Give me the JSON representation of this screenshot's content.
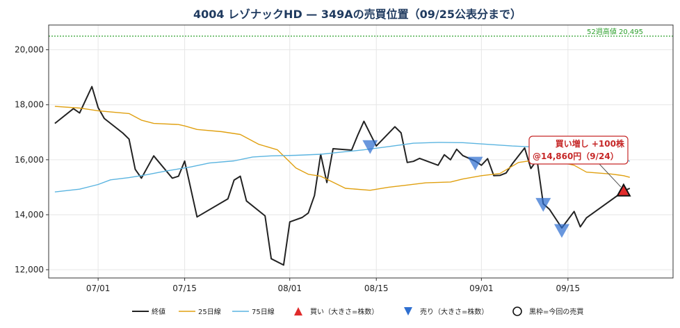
{
  "chart_data": {
    "type": "line",
    "title": "4004 レゾナックHD — 349Aの売買位置（09/25公表分まで）",
    "xlabel": "",
    "ylabel": "",
    "ylim": [
      11700,
      20900
    ],
    "xlim": [
      "2025-06-23",
      "2025-10-02"
    ],
    "grid": true,
    "legend_position": "bottom",
    "x_ticks": [
      "2025-07-01",
      "2025-07-15",
      "2025-08-01",
      "2025-08-15",
      "2025-09-01",
      "2025-09-15"
    ],
    "x_tick_labels": [
      "07/01",
      "07/15",
      "08/01",
      "08/15",
      "09/01",
      "09/15"
    ],
    "y_ticks": [
      12000,
      14000,
      16000,
      18000,
      20000
    ],
    "y_tick_labels": [
      "12,000",
      "14,000",
      "16,000",
      "18,000",
      "20,000"
    ],
    "colors": {
      "close": "#222222",
      "ma25": "#e0a010",
      "ma75": "#5ab4e0",
      "buy": "#e02b2b",
      "sell": "#2f6fd0",
      "ref": "#2ca02c",
      "note_edge": "#c62828"
    },
    "series": [
      {
        "name": "終値",
        "key": "close",
        "points": [
          [
            "2025-06-24",
            17320
          ],
          [
            "2025-06-27",
            17860
          ],
          [
            "2025-06-28",
            17700
          ],
          [
            "2025-06-30",
            18660
          ],
          [
            "2025-07-01",
            17900
          ],
          [
            "2025-07-02",
            17500
          ],
          [
            "2025-07-05",
            16970
          ],
          [
            "2025-07-06",
            16750
          ],
          [
            "2025-07-07",
            15650
          ],
          [
            "2025-07-08",
            15330
          ],
          [
            "2025-07-10",
            16140
          ],
          [
            "2025-07-13",
            15330
          ],
          [
            "2025-07-14",
            15400
          ],
          [
            "2025-07-15",
            15950
          ],
          [
            "2025-07-17",
            13920
          ],
          [
            "2025-07-22",
            14580
          ],
          [
            "2025-07-23",
            15260
          ],
          [
            "2025-07-24",
            15400
          ],
          [
            "2025-07-25",
            14500
          ],
          [
            "2025-07-28",
            13960
          ],
          [
            "2025-07-29",
            12400
          ],
          [
            "2025-07-31",
            12170
          ],
          [
            "2025-08-01",
            13740
          ],
          [
            "2025-08-03",
            13900
          ],
          [
            "2025-08-04",
            14060
          ],
          [
            "2025-08-05",
            14700
          ],
          [
            "2025-08-06",
            16200
          ],
          [
            "2025-08-07",
            15170
          ],
          [
            "2025-08-08",
            16400
          ],
          [
            "2025-08-11",
            16350
          ],
          [
            "2025-08-12",
            16900
          ],
          [
            "2025-08-13",
            17400
          ],
          [
            "2025-08-14",
            16950
          ],
          [
            "2025-08-15",
            16500
          ],
          [
            "2025-08-18",
            17200
          ],
          [
            "2025-08-19",
            16980
          ],
          [
            "2025-08-20",
            15900
          ],
          [
            "2025-08-21",
            15940
          ],
          [
            "2025-08-22",
            16050
          ],
          [
            "2025-08-25",
            15800
          ],
          [
            "2025-08-26",
            16180
          ],
          [
            "2025-08-27",
            16000
          ],
          [
            "2025-08-28",
            16380
          ],
          [
            "2025-08-29",
            16150
          ],
          [
            "2025-08-31",
            15950
          ],
          [
            "2025-09-01",
            15800
          ],
          [
            "2025-09-02",
            16040
          ],
          [
            "2025-09-03",
            15420
          ],
          [
            "2025-09-04",
            15430
          ],
          [
            "2025-09-05",
            15520
          ],
          [
            "2025-09-06",
            15850
          ],
          [
            "2025-09-08",
            16430
          ],
          [
            "2025-09-09",
            15680
          ],
          [
            "2025-09-10",
            16000
          ],
          [
            "2025-09-11",
            14400
          ],
          [
            "2025-09-12",
            14200
          ],
          [
            "2025-09-14",
            13520
          ],
          [
            "2025-09-16",
            14120
          ],
          [
            "2025-09-17",
            13560
          ],
          [
            "2025-09-18",
            13890
          ],
          [
            "2025-09-24",
            14860
          ],
          [
            "2025-09-25",
            14960
          ]
        ]
      },
      {
        "name": "25日線",
        "key": "ma25",
        "points": [
          [
            "2025-06-24",
            17940
          ],
          [
            "2025-06-28",
            17880
          ],
          [
            "2025-07-01",
            17780
          ],
          [
            "2025-07-06",
            17680
          ],
          [
            "2025-07-08",
            17440
          ],
          [
            "2025-07-10",
            17320
          ],
          [
            "2025-07-14",
            17280
          ],
          [
            "2025-07-15",
            17230
          ],
          [
            "2025-07-17",
            17100
          ],
          [
            "2025-07-21",
            17020
          ],
          [
            "2025-07-24",
            16920
          ],
          [
            "2025-07-27",
            16560
          ],
          [
            "2025-07-30",
            16360
          ],
          [
            "2025-08-02",
            15700
          ],
          [
            "2025-08-04",
            15470
          ],
          [
            "2025-08-06",
            15400
          ],
          [
            "2025-08-08",
            15180
          ],
          [
            "2025-08-10",
            14960
          ],
          [
            "2025-08-14",
            14890
          ],
          [
            "2025-08-17",
            15000
          ],
          [
            "2025-08-20",
            15080
          ],
          [
            "2025-08-23",
            15160
          ],
          [
            "2025-08-27",
            15190
          ],
          [
            "2025-08-29",
            15300
          ],
          [
            "2025-09-01",
            15420
          ],
          [
            "2025-09-04",
            15500
          ],
          [
            "2025-09-07",
            15900
          ],
          [
            "2025-09-10",
            16000
          ],
          [
            "2025-09-13",
            15950
          ],
          [
            "2025-09-16",
            15800
          ],
          [
            "2025-09-18",
            15550
          ],
          [
            "2025-09-22",
            15480
          ],
          [
            "2025-09-24",
            15420
          ],
          [
            "2025-09-25",
            15360
          ]
        ]
      },
      {
        "name": "75日線",
        "key": "ma75",
        "points": [
          [
            "2025-06-24",
            14830
          ],
          [
            "2025-06-28",
            14930
          ],
          [
            "2025-07-01",
            15100
          ],
          [
            "2025-07-03",
            15270
          ],
          [
            "2025-07-06",
            15350
          ],
          [
            "2025-07-09",
            15460
          ],
          [
            "2025-07-12",
            15590
          ],
          [
            "2025-07-16",
            15740
          ],
          [
            "2025-07-19",
            15880
          ],
          [
            "2025-07-23",
            15960
          ],
          [
            "2025-07-26",
            16100
          ],
          [
            "2025-07-29",
            16140
          ],
          [
            "2025-08-02",
            16160
          ],
          [
            "2025-08-06",
            16200
          ],
          [
            "2025-08-09",
            16270
          ],
          [
            "2025-08-13",
            16360
          ],
          [
            "2025-08-17",
            16480
          ],
          [
            "2025-08-21",
            16600
          ],
          [
            "2025-08-25",
            16630
          ],
          [
            "2025-08-29",
            16620
          ],
          [
            "2025-09-02",
            16560
          ],
          [
            "2025-09-06",
            16500
          ],
          [
            "2025-09-11",
            16450
          ],
          [
            "2025-09-16",
            16300
          ],
          [
            "2025-09-21",
            16120
          ],
          [
            "2025-09-25",
            15950
          ]
        ]
      }
    ],
    "trades": [
      {
        "type": "sell",
        "date": "2025-08-14",
        "price": 16500,
        "size": "medium",
        "current": false
      },
      {
        "type": "sell",
        "date": "2025-08-31",
        "price": 15900,
        "size": "medium",
        "current": false
      },
      {
        "type": "sell",
        "date": "2025-09-11",
        "price": 14400,
        "size": "medium",
        "current": false
      },
      {
        "type": "sell",
        "date": "2025-09-14",
        "price": 13450,
        "size": "medium",
        "current": false
      },
      {
        "type": "buy",
        "date": "2025-09-24",
        "price": 14860,
        "size": "small",
        "current": true
      }
    ],
    "reference_line": {
      "value": 20495,
      "label": "52週高値 20,495"
    },
    "annotation": {
      "line1": "買い増し +100株",
      "line2": "@14,860円（9/24）",
      "target_date": "2025-09-24",
      "target_price": 14860
    },
    "legend": [
      {
        "label": "終値",
        "kind": "line",
        "key": "close"
      },
      {
        "label": "25日線",
        "kind": "line",
        "key": "ma25"
      },
      {
        "label": "75日線",
        "kind": "line",
        "key": "ma75"
      },
      {
        "label": "買い（大きさ=株数）",
        "kind": "buy-marker"
      },
      {
        "label": "売り（大きさ=株数）",
        "kind": "sell-marker"
      },
      {
        "label": "黒枠=今回の売買",
        "kind": "circle-marker"
      }
    ]
  }
}
